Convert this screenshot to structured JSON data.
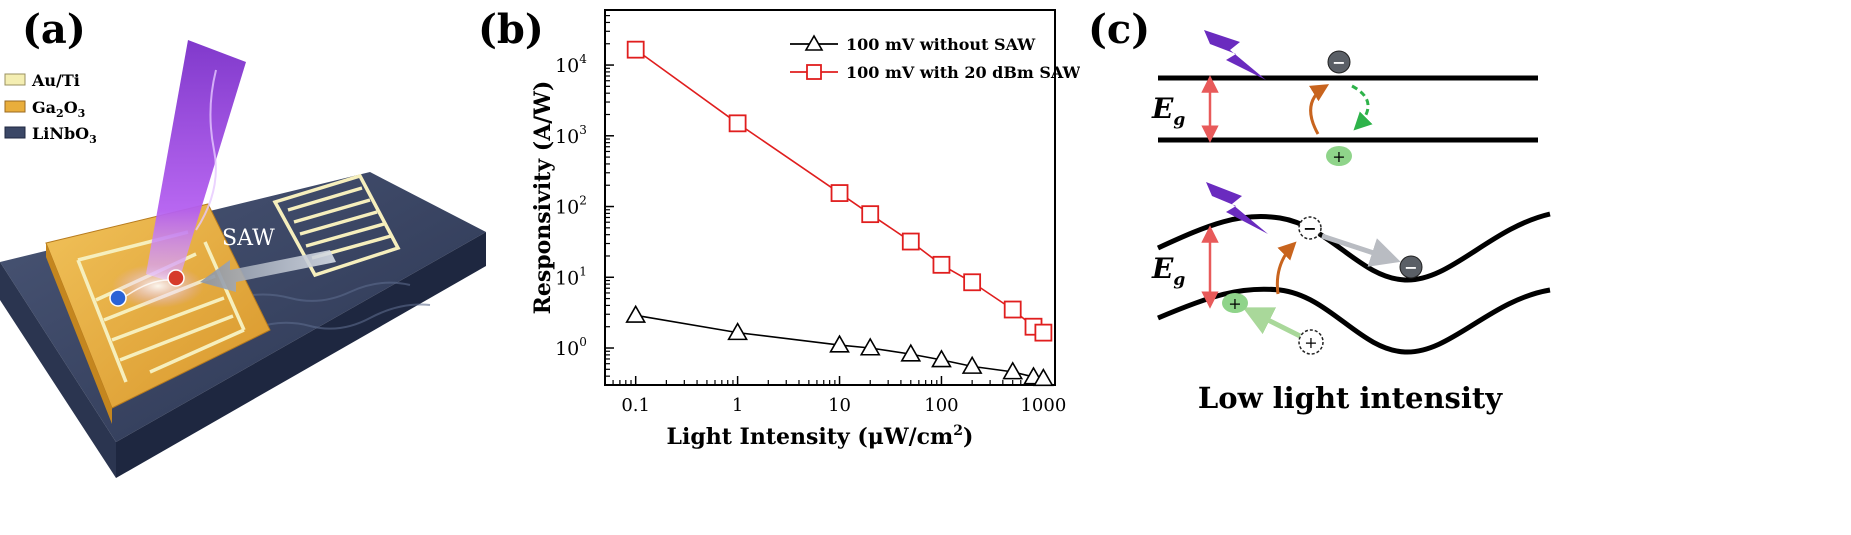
{
  "panel_labels": {
    "a": "(a)",
    "b": "(b)",
    "c": "(c)"
  },
  "panel_a": {
    "legend": [
      {
        "base": "Au/Ti",
        "sub": "",
        "tail": "",
        "color": "#f4eeb2"
      },
      {
        "base": "Ga",
        "sub": "2",
        "tail": "O",
        "sub2": "3",
        "color": "#e9ae3c"
      },
      {
        "base": "LiNbO",
        "sub": "3",
        "tail": "",
        "color": "#3b4766"
      }
    ],
    "saw_label": "SAW"
  },
  "chart_data": {
    "type": "scatter",
    "xscale": "log",
    "yscale": "log",
    "xlim": [
      0.05,
      1300
    ],
    "ylim": [
      0.3,
      60000
    ],
    "xlabel": "Light Intensity (μW/cm",
    "xlabel_sup": "2",
    "xlabel_tail": ")",
    "ylabel": "Responsivity (A/W)",
    "xticks": [
      {
        "value": 0.1,
        "label": "0.1"
      },
      {
        "value": 1,
        "label": "1"
      },
      {
        "value": 10,
        "label": "10"
      },
      {
        "value": 100,
        "label": "100"
      },
      {
        "value": 1000,
        "label": "1000"
      }
    ],
    "yticks": [
      {
        "value": 1,
        "base": "10",
        "exp": "0"
      },
      {
        "value": 10,
        "base": "10",
        "exp": "1"
      },
      {
        "value": 100,
        "base": "10",
        "exp": "2"
      },
      {
        "value": 1000,
        "base": "10",
        "exp": "3"
      },
      {
        "value": 10000,
        "base": "10",
        "exp": "4"
      }
    ],
    "legend_position": "top-right",
    "series": [
      {
        "name": "100 mV without SAW",
        "marker": "triangle",
        "color": "#000000",
        "line": "dash",
        "x": [
          0.1,
          1,
          10,
          20,
          50,
          100,
          200,
          500,
          800,
          1000
        ],
        "y": [
          2.9,
          1.65,
          1.1,
          1.0,
          0.82,
          0.68,
          0.55,
          0.46,
          0.39,
          0.37
        ]
      },
      {
        "name": "100 mV with 20 dBm SAW",
        "marker": "square",
        "color": "#e01e1e",
        "line": "solid",
        "x": [
          0.1,
          1,
          10,
          20,
          50,
          100,
          200,
          500,
          800,
          1000
        ],
        "y": [
          16500,
          1500,
          155,
          78,
          32,
          15,
          8.5,
          3.5,
          2.0,
          1.65
        ]
      }
    ]
  },
  "panel_c": {
    "eg_label": "E",
    "eg_sub": "g",
    "minus": "−",
    "plus": "+",
    "caption": "Low light intensity"
  }
}
